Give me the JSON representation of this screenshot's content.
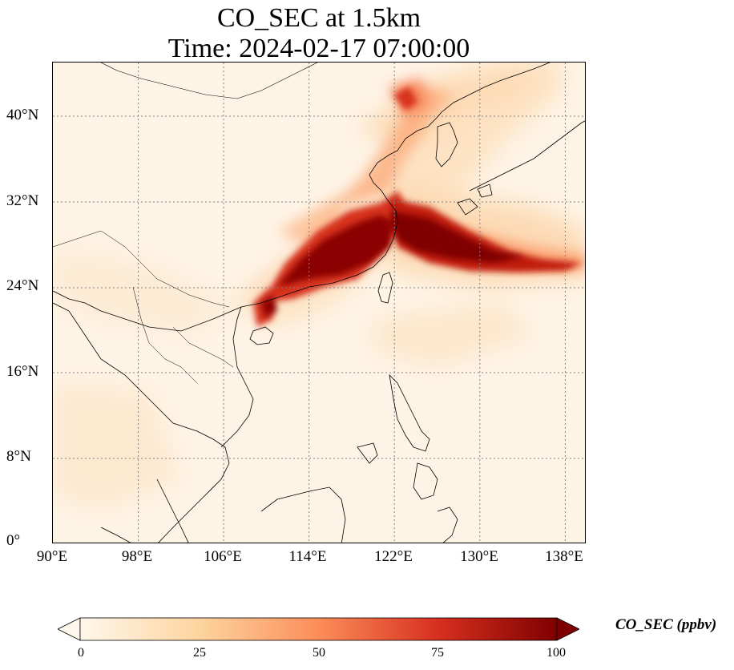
{
  "title": {
    "line1": "CO_SEC at 1.5km",
    "line2": "Time: 2024-02-17 07:00:00"
  },
  "map": {
    "projection": "PlateCarree",
    "lon_range": [
      90,
      140
    ],
    "lat_range": [
      0,
      45
    ],
    "gridlines": "dotted",
    "lon_ticks": [
      "90°E",
      "98°E",
      "106°E",
      "114°E",
      "122°E",
      "130°E",
      "138°E"
    ],
    "lat_ticks": [
      "0°",
      "8°N",
      "16°N",
      "24°N",
      "32°N",
      "40°N"
    ],
    "field_description": "High CO_SEC plume over eastern China coast extending east across East China Sea toward Japan; lower values elsewhere"
  },
  "colorbar": {
    "colormap": "OrRd",
    "ticks": [
      "0",
      "25",
      "50",
      "75",
      "100"
    ],
    "range": [
      0,
      100
    ],
    "extend": "both",
    "label": "CO_SEC (ppbv)",
    "colors": [
      "#fff7ec",
      "#fdd49e",
      "#fc8d59",
      "#d7301f",
      "#7f0000"
    ]
  }
}
